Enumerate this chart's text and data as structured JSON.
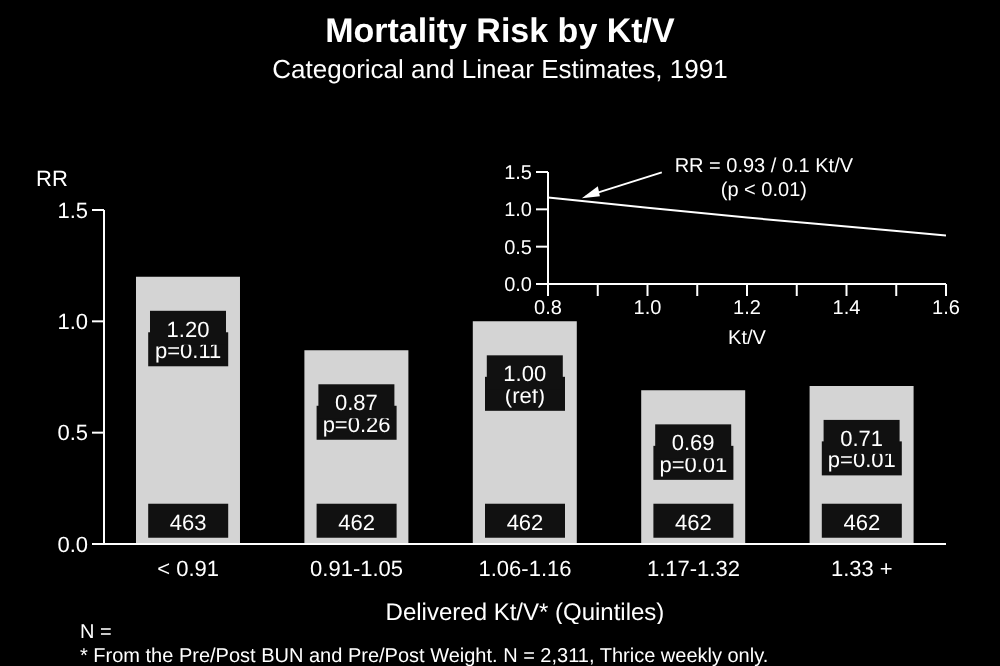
{
  "chart_data": [
    {
      "type": "bar",
      "title": "Mortality Risk by Kt/V",
      "subtitle": "Categorical and Linear Estimates, 1991",
      "xlabel": "Delivered Kt/V* (Quintiles)",
      "ylabel": "RR",
      "categories": [
        "< 0.91",
        "0.91-1.05",
        "1.06-1.16",
        "1.17-1.32",
        "1.33 +"
      ],
      "values": [
        1.2,
        0.87,
        1.0,
        0.69,
        0.71
      ],
      "color": "#d4d4d4",
      "value_labels": [
        "1.20",
        "0.87",
        "1.00",
        "0.69",
        "0.71"
      ],
      "ylim": [
        0,
        1.5
      ],
      "yticks": [
        {
          "value": 0,
          "label": "0.0"
        },
        {
          "value": 0.5,
          "label": "0.5"
        },
        {
          "value": 1,
          "label": "1.0"
        },
        {
          "value": 1.5,
          "label": "1.5"
        }
      ],
      "annotations": [
        {
          "text": "p=0.11",
          "x": "< 0.91",
          "y": 0.87
        },
        {
          "text": "p=0.26",
          "x": "0.91-1.05",
          "y": 0.54
        },
        {
          "text": "(ref)",
          "x": "1.06-1.16",
          "y": 0.67
        },
        {
          "text": "p=0.01",
          "x": "1.17-1.32",
          "y": 0.36
        },
        {
          "text": "p=0.01",
          "x": "1.33 +",
          "y": 0.38
        },
        {
          "text": "463",
          "x": "< 0.91",
          "y": 0.1
        },
        {
          "text": "462",
          "x": "0.91-1.05",
          "y": 0.1
        },
        {
          "text": "462",
          "x": "1.06-1.16",
          "y": 0.1
        },
        {
          "text": "462",
          "x": "1.17-1.32",
          "y": 0.1
        },
        {
          "text": "462",
          "x": "1.33 +",
          "y": 0.1
        },
        "N =",
        "* From the Pre/Post BUN and Pre/Post Weight.  N = 2,311, Thrice weekly only."
      ]
    },
    {
      "type": "line",
      "xlabel": "Kt/V",
      "x": [
        0.8,
        1.0,
        1.2,
        1.4,
        1.6
      ],
      "values": [
        1.16,
        1.02,
        0.89,
        0.77,
        0.65
      ],
      "color": "#ffffff",
      "xlim": [
        0.8,
        1.6
      ],
      "xticks": [
        {
          "value": 0.8,
          "label": "0.8"
        },
        {
          "value": 0.9,
          "label": null
        },
        {
          "value": 1,
          "label": "1.0"
        },
        {
          "value": 1.1,
          "label": null
        },
        {
          "value": 1.2,
          "label": "1.2"
        },
        {
          "value": 1.3,
          "label": null
        },
        {
          "value": 1.4,
          "label": "1.4"
        },
        {
          "value": 1.5,
          "label": null
        },
        {
          "value": 1.6,
          "label": "1.6"
        }
      ],
      "ylim": [
        0,
        1.5
      ],
      "yticks": [
        {
          "value": 0,
          "label": "0.0"
        },
        {
          "value": 0.5,
          "label": "0.5"
        },
        {
          "value": 1,
          "label": "1.0"
        },
        {
          "value": 1.5,
          "label": "1.5"
        }
      ],
      "marker": "none",
      "annotations": [
        {
          "text": "RR = 0.93 / 0.1 Kt/V (p < 0.01)",
          "x": 0.86,
          "y": 1.12
        }
      ]
    }
  ]
}
